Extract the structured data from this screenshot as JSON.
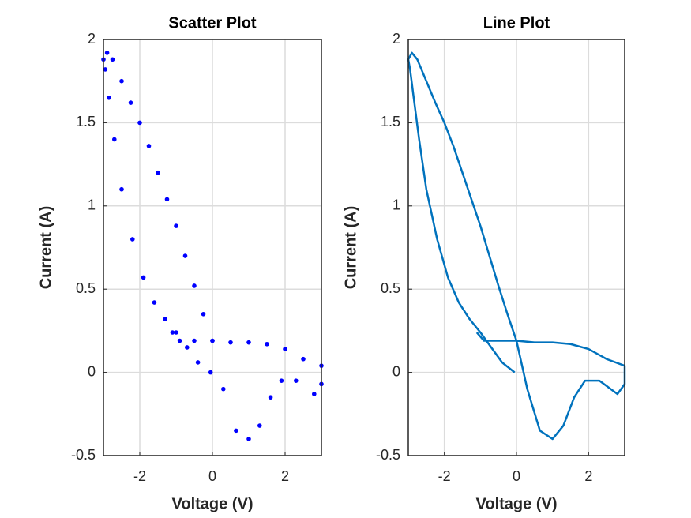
{
  "chart_data": [
    {
      "type": "scatter",
      "title": "Scatter Plot",
      "x_label": "Voltage (V)",
      "y_label": "Current (A)",
      "color": "#0000ff",
      "grid": true,
      "x": [
        -0.05,
        -0.4,
        -0.7,
        -1.0,
        -1.3,
        -1.6,
        -1.9,
        -2.2,
        -2.5,
        -2.7,
        -2.85,
        -2.95,
        -3.0,
        -2.9,
        -2.75,
        -2.5,
        -2.25,
        -2.0,
        -1.75,
        -1.5,
        -1.25,
        -1.0,
        -0.75,
        -0.5,
        -0.25,
        0.0,
        0.3,
        0.65,
        1.0,
        1.3,
        1.6,
        1.9,
        2.3,
        2.8,
        3.0,
        3.0,
        2.5,
        2.0,
        1.5,
        1.0,
        0.5,
        0.0,
        -0.5,
        -0.9,
        -1.1
      ],
      "y": [
        0.0,
        0.06,
        0.15,
        0.24,
        0.32,
        0.42,
        0.57,
        0.8,
        1.1,
        1.4,
        1.65,
        1.82,
        1.88,
        1.92,
        1.88,
        1.75,
        1.62,
        1.5,
        1.36,
        1.2,
        1.04,
        0.88,
        0.7,
        0.52,
        0.35,
        0.19,
        -0.1,
        -0.35,
        -0.4,
        -0.32,
        -0.15,
        -0.05,
        -0.05,
        -0.13,
        -0.07,
        0.04,
        0.08,
        0.14,
        0.17,
        0.18,
        0.18,
        0.19,
        0.19,
        0.19,
        0.24
      ],
      "xlim": [
        -3,
        3
      ],
      "ylim": [
        -0.5,
        2
      ],
      "xticks": [
        -2,
        0,
        2
      ],
      "yticks": [
        -0.5,
        0,
        0.5,
        1,
        1.5,
        2
      ]
    },
    {
      "type": "line",
      "title": "Line Plot",
      "x_label": "Voltage (V)",
      "y_label": "Current (A)",
      "color": "#0072bd",
      "grid": true,
      "x": [
        -0.05,
        -0.4,
        -0.7,
        -1.0,
        -1.3,
        -1.6,
        -1.9,
        -2.2,
        -2.5,
        -2.7,
        -2.85,
        -2.95,
        -3.0,
        -2.9,
        -2.75,
        -2.5,
        -2.25,
        -2.0,
        -1.75,
        -1.5,
        -1.25,
        -1.0,
        -0.75,
        -0.5,
        -0.25,
        0.0,
        0.3,
        0.65,
        1.0,
        1.3,
        1.6,
        1.9,
        2.3,
        2.8,
        3.0,
        3.0,
        2.5,
        2.0,
        1.5,
        1.0,
        0.5,
        0.0,
        -0.5,
        -0.9,
        -1.1
      ],
      "y": [
        0.0,
        0.06,
        0.15,
        0.24,
        0.32,
        0.42,
        0.57,
        0.8,
        1.1,
        1.4,
        1.65,
        1.82,
        1.88,
        1.92,
        1.88,
        1.75,
        1.62,
        1.5,
        1.36,
        1.2,
        1.04,
        0.88,
        0.7,
        0.52,
        0.35,
        0.19,
        -0.1,
        -0.35,
        -0.4,
        -0.32,
        -0.15,
        -0.05,
        -0.05,
        -0.13,
        -0.07,
        0.04,
        0.08,
        0.14,
        0.17,
        0.18,
        0.18,
        0.19,
        0.19,
        0.19,
        0.24
      ],
      "xlim": [
        -3,
        3
      ],
      "ylim": [
        -0.5,
        2
      ],
      "xticks": [
        -2,
        0,
        2
      ],
      "yticks": [
        -0.5,
        0,
        0.5,
        1,
        1.5,
        2
      ]
    }
  ]
}
